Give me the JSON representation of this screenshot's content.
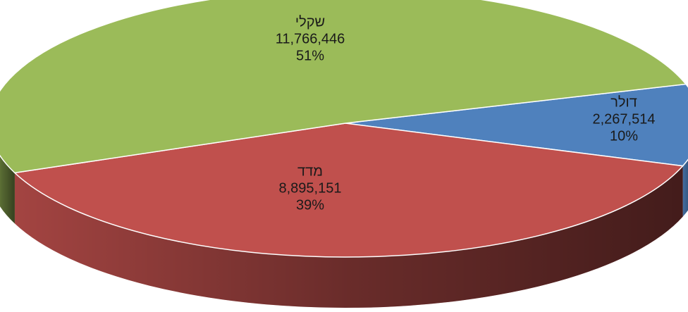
{
  "chart_data": {
    "type": "pie",
    "categories": [
      "שקלי",
      "דולר",
      "מדד"
    ],
    "values": [
      11766446,
      2267514,
      8895151
    ],
    "value_labels": [
      "11,766,446",
      "2,267,514",
      "8,895,151"
    ],
    "percents": [
      51,
      10,
      39
    ],
    "percent_labels": [
      "51%",
      "10%",
      "39%"
    ],
    "colors": [
      "#9bbb59",
      "#4f81bd",
      "#c0504d"
    ]
  }
}
